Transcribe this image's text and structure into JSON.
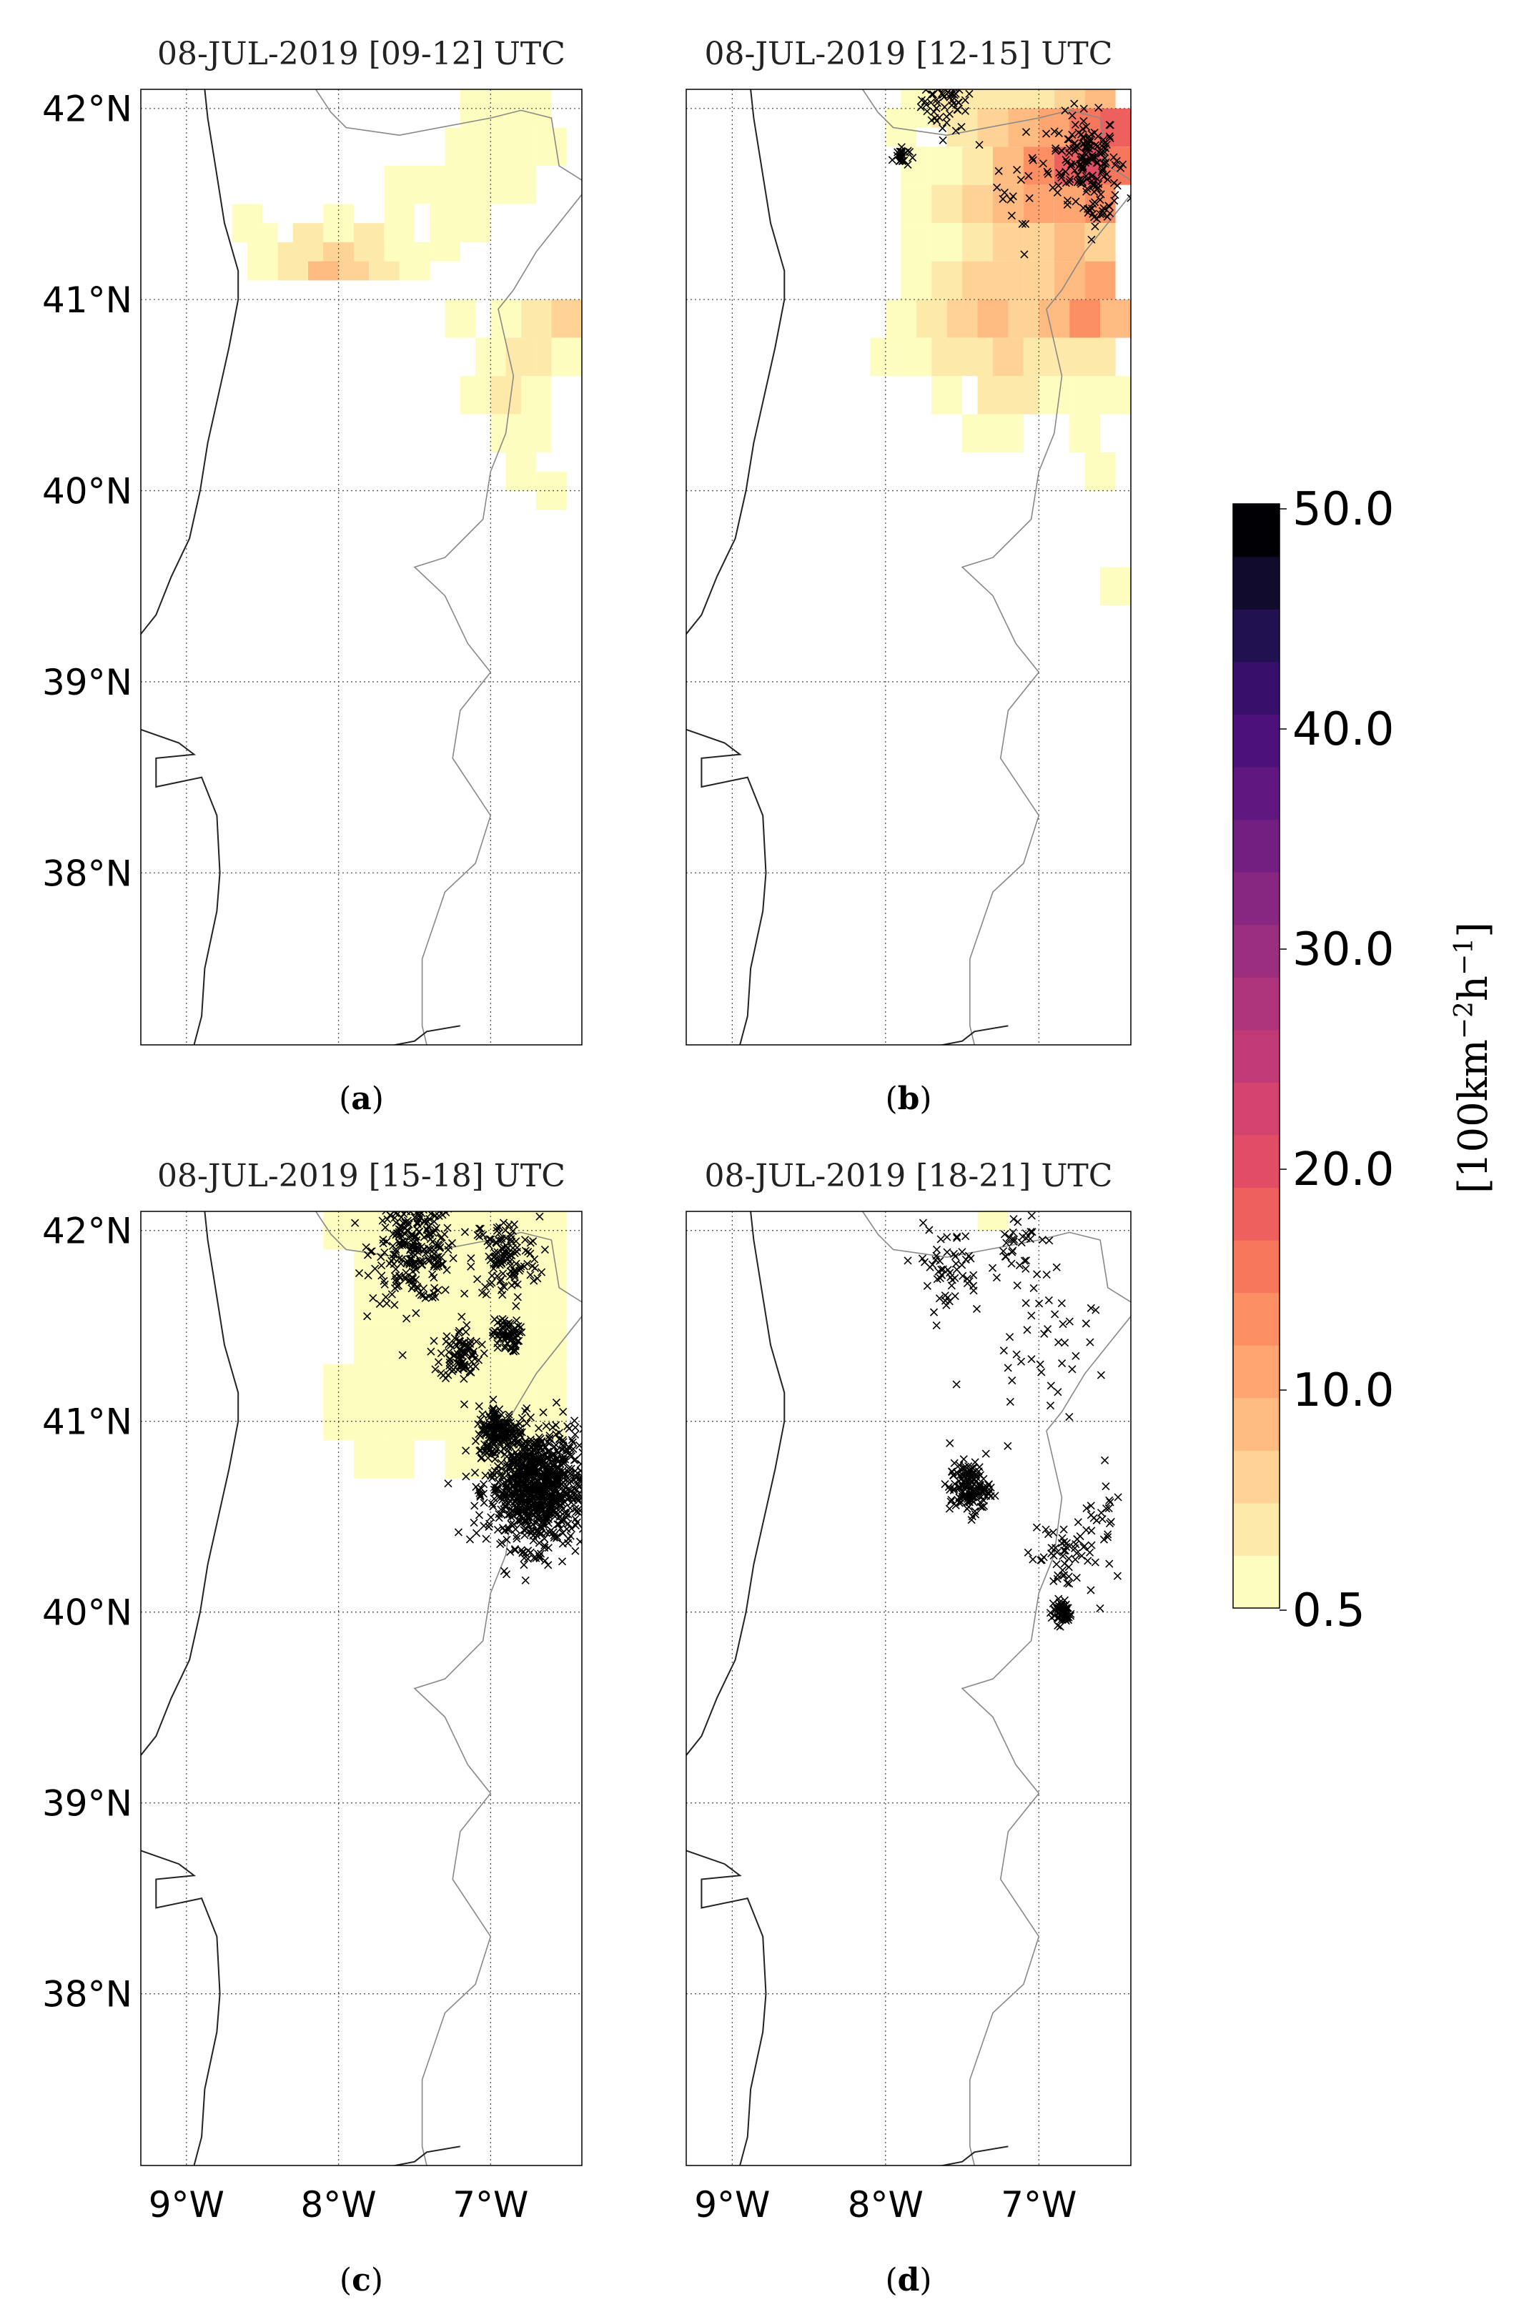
{
  "panels": [
    {
      "id": "a",
      "title": "08-JUL-2019 [09-12] UTC",
      "label_letter": "a",
      "density_cells": [
        [
          -8.5,
          41.2,
          1
        ],
        [
          -8.3,
          41.2,
          2
        ],
        [
          -8.1,
          41.2,
          4
        ],
        [
          -7.9,
          41.2,
          3
        ],
        [
          -7.7,
          41.2,
          2
        ],
        [
          -7.5,
          41.2,
          1
        ],
        [
          -8.5,
          41.3,
          1
        ],
        [
          -8.2,
          41.3,
          2
        ],
        [
          -8.0,
          41.3,
          3
        ],
        [
          -7.8,
          41.3,
          2
        ],
        [
          -7.6,
          41.3,
          1
        ],
        [
          -7.3,
          41.3,
          1
        ],
        [
          -8.6,
          41.4,
          1
        ],
        [
          -8.0,
          41.4,
          1
        ],
        [
          -7.6,
          41.4,
          1
        ],
        [
          -7.3,
          41.4,
          1
        ],
        [
          -7.1,
          41.4,
          1
        ],
        [
          -7.6,
          41.6,
          1
        ],
        [
          -7.4,
          41.6,
          1
        ],
        [
          -7.2,
          41.6,
          1
        ],
        [
          -7.0,
          41.6,
          1
        ],
        [
          -6.8,
          41.6,
          1
        ],
        [
          -7.2,
          41.8,
          1
        ],
        [
          -7.0,
          41.8,
          1
        ],
        [
          -6.8,
          41.8,
          1
        ],
        [
          -6.6,
          41.8,
          1
        ],
        [
          -7.1,
          42.0,
          1
        ],
        [
          -6.9,
          42.0,
          1
        ],
        [
          -6.7,
          42.0,
          1
        ],
        [
          -7.2,
          40.9,
          1
        ],
        [
          -6.9,
          40.9,
          1
        ],
        [
          -6.7,
          40.9,
          2
        ],
        [
          -6.5,
          40.9,
          3
        ],
        [
          -7.0,
          40.7,
          1
        ],
        [
          -6.8,
          40.7,
          2
        ],
        [
          -6.6,
          40.7,
          2
        ],
        [
          -6.5,
          40.7,
          1
        ],
        [
          -7.1,
          40.5,
          1
        ],
        [
          -6.9,
          40.5,
          2
        ],
        [
          -6.7,
          40.5,
          1
        ],
        [
          -6.9,
          40.3,
          1
        ],
        [
          -6.7,
          40.3,
          1
        ],
        [
          -6.8,
          40.1,
          1
        ],
        [
          -6.6,
          40.0,
          1
        ]
      ],
      "strike_clusters": []
    },
    {
      "id": "b",
      "title": "08-JUL-2019 [12-15] UTC",
      "label_letter": "b",
      "density_cells": [
        [
          -7.8,
          42.0,
          1
        ],
        [
          -7.6,
          42.0,
          2
        ],
        [
          -7.4,
          42.0,
          2
        ],
        [
          -7.2,
          42.0,
          2
        ],
        [
          -7.0,
          42.0,
          2
        ],
        [
          -6.8,
          42.0,
          3
        ],
        [
          -6.6,
          42.0,
          4
        ],
        [
          -7.9,
          41.9,
          1
        ],
        [
          -7.5,
          41.9,
          2
        ],
        [
          -7.3,
          41.9,
          3
        ],
        [
          -7.1,
          41.9,
          4
        ],
        [
          -6.9,
          41.9,
          5
        ],
        [
          -6.7,
          41.9,
          7
        ],
        [
          -6.5,
          41.9,
          8
        ],
        [
          -7.8,
          41.7,
          1
        ],
        [
          -7.6,
          41.7,
          1
        ],
        [
          -7.4,
          41.7,
          2
        ],
        [
          -7.2,
          41.7,
          4
        ],
        [
          -7.0,
          41.7,
          6
        ],
        [
          -6.8,
          41.7,
          8
        ],
        [
          -6.6,
          41.7,
          9
        ],
        [
          -6.5,
          41.7,
          7
        ],
        [
          -7.8,
          41.5,
          1
        ],
        [
          -7.6,
          41.5,
          2
        ],
        [
          -7.4,
          41.5,
          3
        ],
        [
          -7.2,
          41.5,
          4
        ],
        [
          -7.0,
          41.5,
          5
        ],
        [
          -6.8,
          41.5,
          5
        ],
        [
          -6.6,
          41.5,
          6
        ],
        [
          -7.8,
          41.3,
          1
        ],
        [
          -7.6,
          41.3,
          1
        ],
        [
          -7.4,
          41.3,
          2
        ],
        [
          -7.2,
          41.3,
          3
        ],
        [
          -7.0,
          41.3,
          3
        ],
        [
          -6.8,
          41.3,
          4
        ],
        [
          -6.6,
          41.3,
          3
        ],
        [
          -7.8,
          41.1,
          1
        ],
        [
          -7.6,
          41.1,
          2
        ],
        [
          -7.4,
          41.1,
          3
        ],
        [
          -7.2,
          41.1,
          3
        ],
        [
          -7.0,
          41.1,
          3
        ],
        [
          -6.8,
          41.1,
          4
        ],
        [
          -6.6,
          41.1,
          5
        ],
        [
          -7.9,
          40.9,
          1
        ],
        [
          -7.7,
          40.9,
          2
        ],
        [
          -7.5,
          40.9,
          3
        ],
        [
          -7.3,
          40.9,
          4
        ],
        [
          -7.1,
          40.9,
          3
        ],
        [
          -6.9,
          40.9,
          4
        ],
        [
          -6.7,
          40.9,
          6
        ],
        [
          -6.5,
          40.9,
          4
        ],
        [
          -8.0,
          40.7,
          1
        ],
        [
          -7.8,
          40.7,
          1
        ],
        [
          -7.6,
          40.7,
          2
        ],
        [
          -7.4,
          40.7,
          2
        ],
        [
          -7.2,
          40.7,
          3
        ],
        [
          -7.0,
          40.7,
          2
        ],
        [
          -6.8,
          40.7,
          2
        ],
        [
          -6.6,
          40.7,
          2
        ],
        [
          -7.6,
          40.5,
          1
        ],
        [
          -7.3,
          40.5,
          2
        ],
        [
          -7.1,
          40.5,
          2
        ],
        [
          -6.9,
          40.5,
          1
        ],
        [
          -6.7,
          40.5,
          1
        ],
        [
          -6.5,
          40.5,
          1
        ],
        [
          -7.4,
          40.3,
          1
        ],
        [
          -7.2,
          40.3,
          1
        ],
        [
          -6.7,
          40.3,
          1
        ],
        [
          -6.6,
          40.1,
          1
        ],
        [
          -6.5,
          39.5,
          1
        ]
      ],
      "strike_clusters": [
        {
          "lon": -7.6,
          "lat": 42.05,
          "spread": 0.15,
          "count": 70
        },
        {
          "lon": -6.7,
          "lat": 41.75,
          "spread": 0.2,
          "count": 140
        },
        {
          "lon": -7.9,
          "lat": 41.75,
          "spread": 0.05,
          "count": 25
        },
        {
          "lon": -6.6,
          "lat": 41.5,
          "spread": 0.1,
          "count": 30
        },
        {
          "lon": -7.1,
          "lat": 41.6,
          "spread": 0.3,
          "count": 20
        }
      ]
    },
    {
      "id": "c",
      "title": "08-JUL-2019 [15-18] UTC",
      "label_letter": "c",
      "density_cells": [
        [
          -8.0,
          42.0,
          1
        ],
        [
          -7.8,
          42.0,
          1
        ],
        [
          -7.6,
          42.0,
          1
        ],
        [
          -7.4,
          42.0,
          1
        ],
        [
          -7.2,
          42.0,
          1
        ],
        [
          -7.0,
          42.0,
          1
        ],
        [
          -6.8,
          42.0,
          1
        ],
        [
          -6.6,
          42.0,
          1
        ],
        [
          -7.8,
          41.8,
          1
        ],
        [
          -7.6,
          41.8,
          1
        ],
        [
          -7.4,
          41.8,
          1
        ],
        [
          -7.2,
          41.8,
          1
        ],
        [
          -7.0,
          41.8,
          1
        ],
        [
          -6.8,
          41.8,
          1
        ],
        [
          -6.6,
          41.8,
          1
        ],
        [
          -7.8,
          41.6,
          1
        ],
        [
          -7.6,
          41.6,
          1
        ],
        [
          -7.4,
          41.6,
          1
        ],
        [
          -7.2,
          41.6,
          1
        ],
        [
          -7.0,
          41.6,
          1
        ],
        [
          -6.8,
          41.6,
          1
        ],
        [
          -6.6,
          41.6,
          1
        ],
        [
          -7.8,
          41.4,
          1
        ],
        [
          -7.6,
          41.4,
          1
        ],
        [
          -7.4,
          41.4,
          1
        ],
        [
          -7.2,
          41.4,
          1
        ],
        [
          -7.0,
          41.4,
          1
        ],
        [
          -6.8,
          41.4,
          1
        ],
        [
          -6.6,
          41.4,
          1
        ],
        [
          -8.0,
          41.2,
          1
        ],
        [
          -7.8,
          41.2,
          1
        ],
        [
          -7.6,
          41.2,
          1
        ],
        [
          -7.4,
          41.2,
          1
        ],
        [
          -7.2,
          41.2,
          1
        ],
        [
          -7.0,
          41.2,
          1
        ],
        [
          -6.8,
          41.2,
          1
        ],
        [
          -6.6,
          41.2,
          1
        ],
        [
          -8.0,
          41.0,
          1
        ],
        [
          -7.8,
          41.0,
          1
        ],
        [
          -7.6,
          41.0,
          1
        ],
        [
          -7.4,
          41.0,
          1
        ],
        [
          -7.2,
          41.0,
          1
        ],
        [
          -7.0,
          41.0,
          1
        ],
        [
          -6.8,
          41.0,
          1
        ],
        [
          -6.6,
          41.0,
          1
        ],
        [
          -7.8,
          40.8,
          1
        ],
        [
          -7.6,
          40.8,
          1
        ],
        [
          -7.2,
          40.8,
          1
        ],
        [
          -7.0,
          40.8,
          1
        ],
        [
          -6.8,
          40.8,
          1
        ]
      ],
      "strike_clusters": [
        {
          "lon": -7.5,
          "lat": 41.9,
          "spread": 0.25,
          "count": 260
        },
        {
          "lon": -6.9,
          "lat": 41.85,
          "spread": 0.2,
          "count": 120
        },
        {
          "lon": -7.2,
          "lat": 41.35,
          "spread": 0.12,
          "count": 90
        },
        {
          "lon": -6.9,
          "lat": 41.45,
          "spread": 0.08,
          "count": 70
        },
        {
          "lon": -6.7,
          "lat": 40.65,
          "spread": 0.28,
          "count": 900
        },
        {
          "lon": -6.95,
          "lat": 40.95,
          "spread": 0.12,
          "count": 150
        }
      ]
    },
    {
      "id": "d",
      "title": "08-JUL-2019 [18-21] UTC",
      "label_letter": "d",
      "density_cells": [
        [
          -7.3,
          42.1,
          1
        ]
      ],
      "strike_clusters": [
        {
          "lon": -7.6,
          "lat": 41.8,
          "spread": 0.2,
          "count": 55
        },
        {
          "lon": -7.15,
          "lat": 41.95,
          "spread": 0.15,
          "count": 30
        },
        {
          "lon": -7.0,
          "lat": 41.45,
          "spread": 0.35,
          "count": 45
        },
        {
          "lon": -7.45,
          "lat": 40.65,
          "spread": 0.12,
          "count": 140
        },
        {
          "lon": -6.85,
          "lat": 40.3,
          "spread": 0.2,
          "count": 60
        },
        {
          "lon": -6.85,
          "lat": 40.0,
          "spread": 0.06,
          "count": 60
        },
        {
          "lon": -6.6,
          "lat": 40.5,
          "spread": 0.15,
          "count": 20
        }
      ]
    }
  ],
  "axes": {
    "lat_ticks": [
      {
        "value": 42,
        "label": "42°N"
      },
      {
        "value": 41,
        "label": "41°N"
      },
      {
        "value": 40,
        "label": "40°N"
      },
      {
        "value": 39,
        "label": "39°N"
      },
      {
        "value": 38,
        "label": "38°N"
      }
    ],
    "lon_ticks": [
      {
        "value": -9,
        "label": "9°W"
      },
      {
        "value": -8,
        "label": "8°W"
      },
      {
        "value": -7,
        "label": "7°W"
      }
    ],
    "lon_range": [
      -9.3,
      -6.4
    ],
    "lat_range": [
      37.1,
      42.1
    ]
  },
  "colorbar": {
    "tick_labels": [
      "50.0",
      "40.0",
      "30.0",
      "20.0",
      "10.0",
      "0.5"
    ],
    "unit_label": "[100km",
    "unit_sup1": "−2",
    "unit_mid": "h",
    "unit_sup2": "−1",
    "unit_end": "]",
    "colors": [
      "#fcfdbf",
      "#fde9a9",
      "#fed395",
      "#febb81",
      "#fea571",
      "#fc8e64",
      "#f7775c",
      "#ee605e",
      "#e24d66",
      "#d3436e",
      "#c03a76",
      "#ae347b",
      "#9a2f7f",
      "#872781",
      "#731f81",
      "#601880",
      "#4c117a",
      "#37106c",
      "#221150",
      "#110b2d",
      "#000004"
    ],
    "strike_marker_color": "#000000"
  },
  "coastline": [
    [
      -8.88,
      42.1
    ],
    [
      -8.86,
      41.95
    ],
    [
      -8.81,
      41.7
    ],
    [
      -8.75,
      41.4
    ],
    [
      -8.66,
      41.15
    ],
    [
      -8.66,
      41.0
    ],
    [
      -8.72,
      40.75
    ],
    [
      -8.79,
      40.5
    ],
    [
      -8.86,
      40.25
    ],
    [
      -8.91,
      40.0
    ],
    [
      -8.98,
      39.75
    ],
    [
      -9.1,
      39.55
    ],
    [
      -9.2,
      39.35
    ],
    [
      -9.35,
      39.2
    ],
    [
      -9.4,
      39.0
    ],
    [
      -9.3,
      38.75
    ],
    [
      -9.05,
      38.68
    ],
    [
      -8.95,
      38.62
    ],
    [
      -9.2,
      38.6
    ],
    [
      -9.2,
      38.45
    ],
    [
      -8.9,
      38.5
    ],
    [
      -8.8,
      38.3
    ],
    [
      -8.78,
      38.0
    ],
    [
      -8.8,
      37.8
    ],
    [
      -8.88,
      37.5
    ],
    [
      -8.9,
      37.25
    ],
    [
      -8.95,
      37.1
    ]
  ],
  "border": [
    [
      -8.15,
      42.1
    ],
    [
      -8.05,
      41.98
    ],
    [
      -7.95,
      41.9
    ],
    [
      -7.6,
      41.86
    ],
    [
      -7.2,
      41.92
    ],
    [
      -7.0,
      41.95
    ],
    [
      -6.8,
      41.99
    ],
    [
      -6.6,
      41.95
    ],
    [
      -6.55,
      41.7
    ],
    [
      -6.35,
      41.6
    ],
    [
      -6.55,
      41.4
    ],
    [
      -6.7,
      41.25
    ],
    [
      -6.85,
      41.05
    ],
    [
      -6.95,
      40.95
    ],
    [
      -6.85,
      40.6
    ],
    [
      -6.9,
      40.3
    ],
    [
      -7.0,
      40.1
    ],
    [
      -7.05,
      39.85
    ],
    [
      -7.3,
      39.65
    ],
    [
      -7.5,
      39.6
    ],
    [
      -7.3,
      39.45
    ],
    [
      -7.15,
      39.2
    ],
    [
      -7.0,
      39.05
    ],
    [
      -7.2,
      38.85
    ],
    [
      -7.25,
      38.6
    ],
    [
      -7.0,
      38.3
    ],
    [
      -7.1,
      38.05
    ],
    [
      -7.3,
      37.9
    ],
    [
      -7.45,
      37.55
    ],
    [
      -7.45,
      37.2
    ],
    [
      -7.42,
      37.1
    ]
  ],
  "south_coast": [
    [
      -7.95,
      37.05
    ],
    [
      -7.5,
      37.12
    ],
    [
      -7.42,
      37.17
    ],
    [
      -7.2,
      37.2
    ]
  ]
}
